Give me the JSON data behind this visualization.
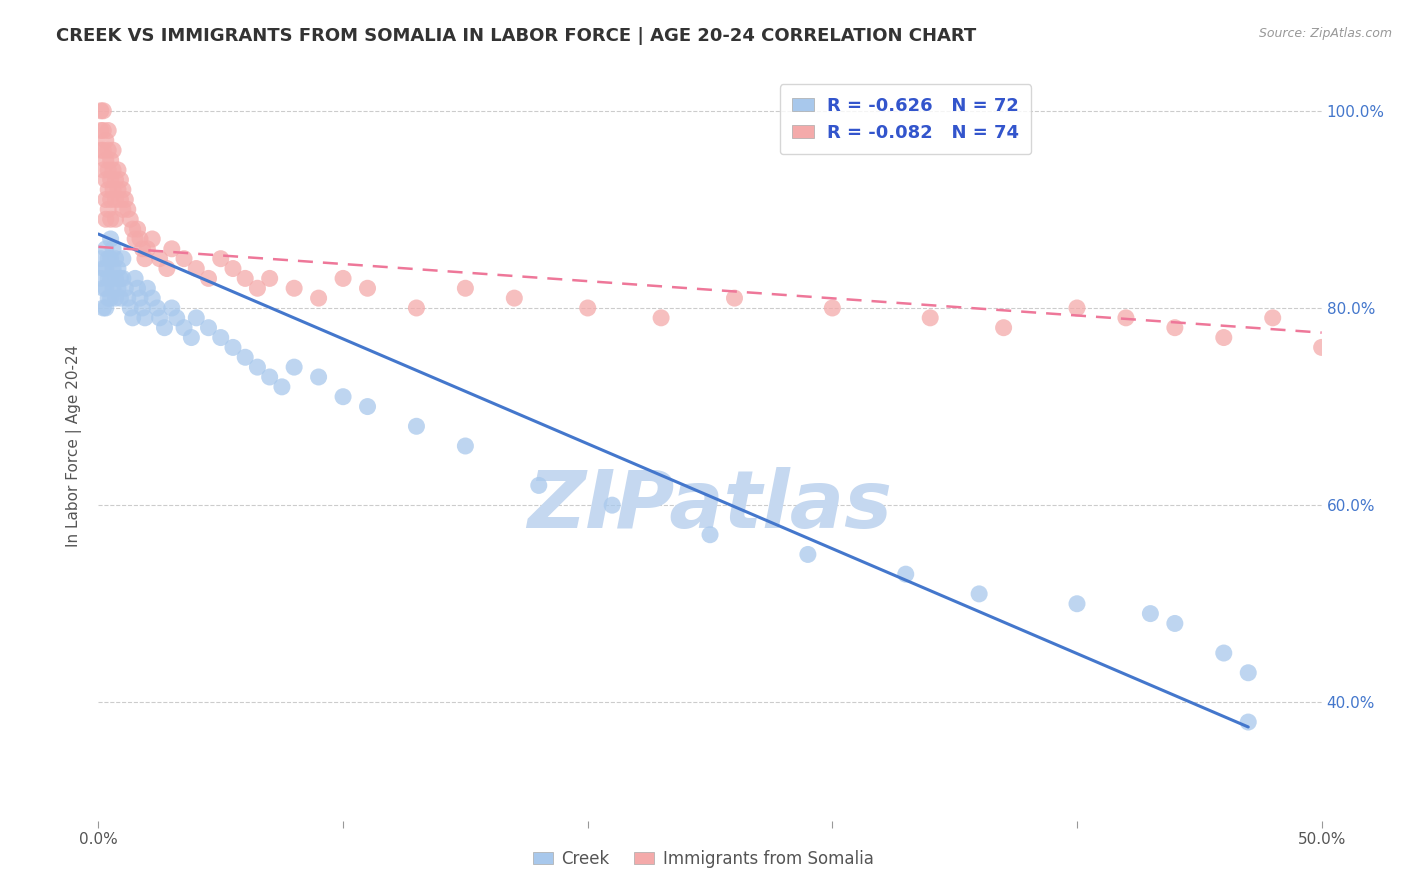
{
  "title": "CREEK VS IMMIGRANTS FROM SOMALIA IN LABOR FORCE | AGE 20-24 CORRELATION CHART",
  "source": "Source: ZipAtlas.com",
  "ylabel": "In Labor Force | Age 20-24",
  "xmin": 0.0,
  "xmax": 0.5,
  "ymin": 0.28,
  "ymax": 1.04,
  "yticks_right": [
    0.4,
    0.6,
    0.8,
    1.0
  ],
  "ytick_labels_right": [
    "40.0%",
    "60.0%",
    "80.0%",
    "100.0%"
  ],
  "xticks": [
    0.0,
    0.1,
    0.2,
    0.3,
    0.4,
    0.5
  ],
  "xtick_labels_show": [
    "0.0%",
    "",
    "",
    "",
    "",
    "50.0%"
  ],
  "creek_color": "#A8C8EC",
  "somalia_color": "#F4AAAA",
  "creek_R": -0.626,
  "creek_N": 72,
  "somalia_R": -0.082,
  "somalia_N": 74,
  "legend_text_color": "#3355CC",
  "background_color": "#FFFFFF",
  "grid_color": "#CCCCCC",
  "creek_scatter_x": [
    0.001,
    0.001,
    0.002,
    0.002,
    0.002,
    0.003,
    0.003,
    0.003,
    0.003,
    0.004,
    0.004,
    0.004,
    0.005,
    0.005,
    0.005,
    0.005,
    0.006,
    0.006,
    0.006,
    0.007,
    0.007,
    0.007,
    0.008,
    0.008,
    0.009,
    0.009,
    0.01,
    0.01,
    0.011,
    0.012,
    0.013,
    0.014,
    0.015,
    0.016,
    0.017,
    0.018,
    0.019,
    0.02,
    0.022,
    0.024,
    0.025,
    0.027,
    0.03,
    0.032,
    0.035,
    0.038,
    0.04,
    0.045,
    0.05,
    0.055,
    0.06,
    0.065,
    0.07,
    0.075,
    0.08,
    0.09,
    0.1,
    0.11,
    0.13,
    0.15,
    0.18,
    0.21,
    0.25,
    0.29,
    0.33,
    0.36,
    0.4,
    0.43,
    0.44,
    0.46,
    0.47,
    0.47
  ],
  "creek_scatter_y": [
    0.85,
    0.83,
    0.84,
    0.82,
    0.8,
    0.86,
    0.84,
    0.82,
    0.8,
    0.85,
    0.83,
    0.81,
    0.87,
    0.85,
    0.83,
    0.81,
    0.86,
    0.84,
    0.82,
    0.85,
    0.83,
    0.81,
    0.84,
    0.82,
    0.83,
    0.81,
    0.85,
    0.83,
    0.82,
    0.81,
    0.8,
    0.79,
    0.83,
    0.82,
    0.81,
    0.8,
    0.79,
    0.82,
    0.81,
    0.8,
    0.79,
    0.78,
    0.8,
    0.79,
    0.78,
    0.77,
    0.79,
    0.78,
    0.77,
    0.76,
    0.75,
    0.74,
    0.73,
    0.72,
    0.74,
    0.73,
    0.71,
    0.7,
    0.68,
    0.66,
    0.62,
    0.6,
    0.57,
    0.55,
    0.53,
    0.51,
    0.5,
    0.49,
    0.48,
    0.45,
    0.43,
    0.38
  ],
  "somalia_scatter_x": [
    0.001,
    0.001,
    0.001,
    0.002,
    0.002,
    0.002,
    0.002,
    0.003,
    0.003,
    0.003,
    0.003,
    0.003,
    0.004,
    0.004,
    0.004,
    0.004,
    0.004,
    0.005,
    0.005,
    0.005,
    0.005,
    0.006,
    0.006,
    0.006,
    0.007,
    0.007,
    0.007,
    0.008,
    0.008,
    0.009,
    0.009,
    0.01,
    0.01,
    0.011,
    0.012,
    0.013,
    0.014,
    0.015,
    0.016,
    0.017,
    0.018,
    0.019,
    0.02,
    0.022,
    0.025,
    0.028,
    0.03,
    0.035,
    0.04,
    0.045,
    0.05,
    0.055,
    0.06,
    0.065,
    0.07,
    0.08,
    0.09,
    0.1,
    0.11,
    0.13,
    0.15,
    0.17,
    0.2,
    0.23,
    0.26,
    0.3,
    0.34,
    0.37,
    0.4,
    0.42,
    0.44,
    0.46,
    0.48,
    0.5
  ],
  "somalia_scatter_y": [
    1.0,
    0.98,
    0.96,
    1.0,
    0.98,
    0.96,
    0.94,
    0.97,
    0.95,
    0.93,
    0.91,
    0.89,
    0.98,
    0.96,
    0.94,
    0.92,
    0.9,
    0.95,
    0.93,
    0.91,
    0.89,
    0.96,
    0.94,
    0.92,
    0.93,
    0.91,
    0.89,
    0.94,
    0.92,
    0.93,
    0.91,
    0.92,
    0.9,
    0.91,
    0.9,
    0.89,
    0.88,
    0.87,
    0.88,
    0.87,
    0.86,
    0.85,
    0.86,
    0.87,
    0.85,
    0.84,
    0.86,
    0.85,
    0.84,
    0.83,
    0.85,
    0.84,
    0.83,
    0.82,
    0.83,
    0.82,
    0.81,
    0.83,
    0.82,
    0.8,
    0.82,
    0.81,
    0.8,
    0.79,
    0.81,
    0.8,
    0.79,
    0.78,
    0.8,
    0.79,
    0.78,
    0.77,
    0.79,
    0.76
  ],
  "creek_trendline_x": [
    0.0,
    0.47
  ],
  "creek_trendline_y": [
    0.875,
    0.375
  ],
  "somalia_trendline_x": [
    0.0,
    0.5
  ],
  "somalia_trendline_y": [
    0.862,
    0.775
  ],
  "watermark": "ZIPatlas",
  "watermark_color": "#C5D8F0",
  "title_fontsize": 13,
  "axis_label_fontsize": 11,
  "tick_fontsize": 11,
  "legend_fontsize": 13,
  "bottom_legend_labels": [
    "Creek",
    "Immigrants from Somalia"
  ],
  "bottom_legend_colors": [
    "#A8C8EC",
    "#F4AAAA"
  ]
}
